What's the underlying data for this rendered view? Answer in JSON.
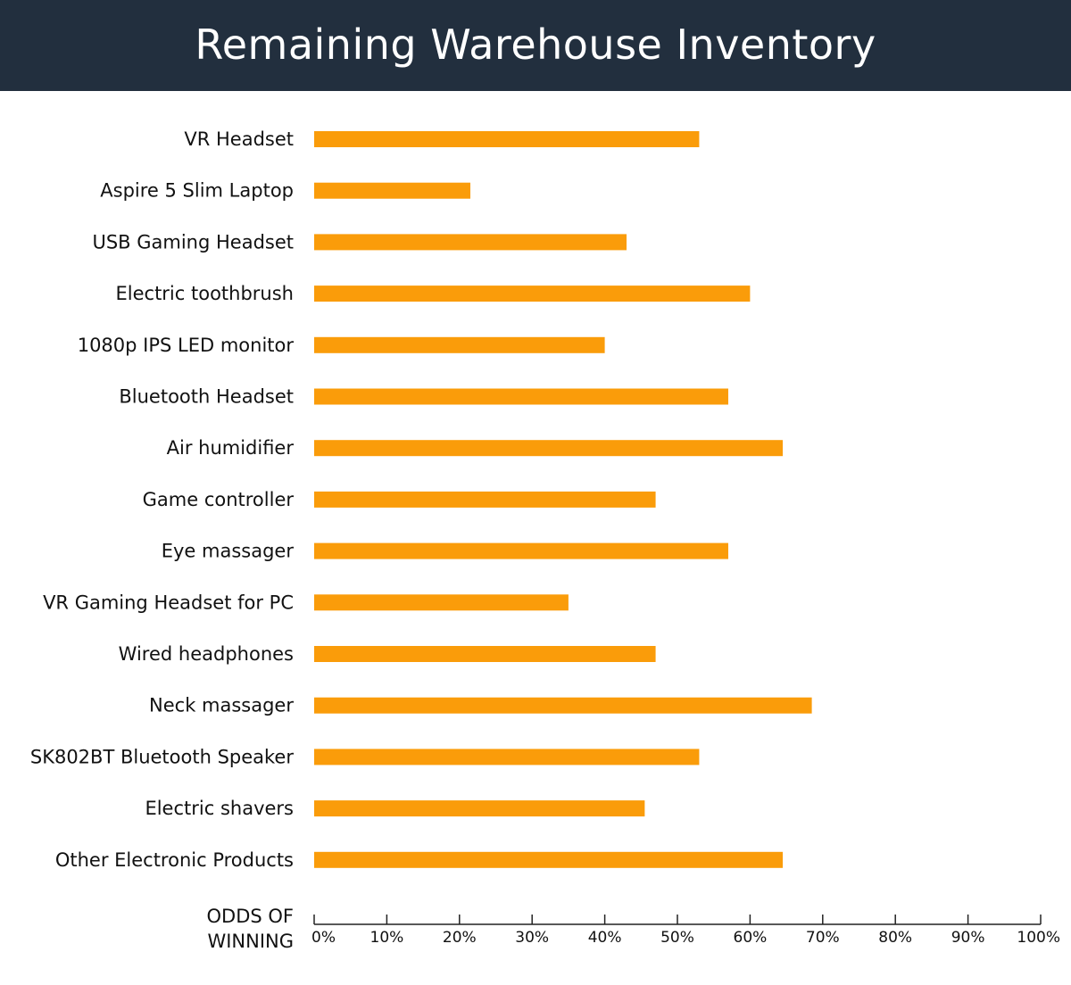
{
  "header": {
    "title": "Remaining Warehouse Inventory"
  },
  "chart_data": {
    "type": "bar",
    "orientation": "horizontal",
    "title": "Remaining Warehouse Inventory",
    "xlabel_lines": [
      "ODDS OF",
      "WINNING"
    ],
    "ylabel": "",
    "xlim": [
      0,
      100
    ],
    "x_ticks": [
      0,
      10,
      20,
      30,
      40,
      50,
      60,
      70,
      80,
      90,
      100
    ],
    "x_tick_labels": [
      "0%",
      "10%",
      "20%",
      "30%",
      "40%",
      "50%",
      "60%",
      "70%",
      "80%",
      "90%",
      "100%"
    ],
    "grid": false,
    "legend": "none",
    "bar_color": "#fa9c0a",
    "categories": [
      "VR Headset",
      "Aspire 5 Slim Laptop",
      "USB Gaming Headset",
      "Electric toothbrush",
      "1080p IPS LED monitor",
      "Bluetooth Headset",
      "Air humidifier",
      "Game controller",
      "Eye massager",
      "VR Gaming Headset for PC",
      "Wired headphones",
      "Neck massager",
      "SK802BT Bluetooth Speaker",
      "Electric shavers",
      "Other Electronic Products"
    ],
    "values": [
      53,
      21.5,
      43,
      60,
      40,
      57,
      64.5,
      47,
      57,
      35,
      47,
      68.5,
      53,
      45.5,
      64.5
    ]
  }
}
